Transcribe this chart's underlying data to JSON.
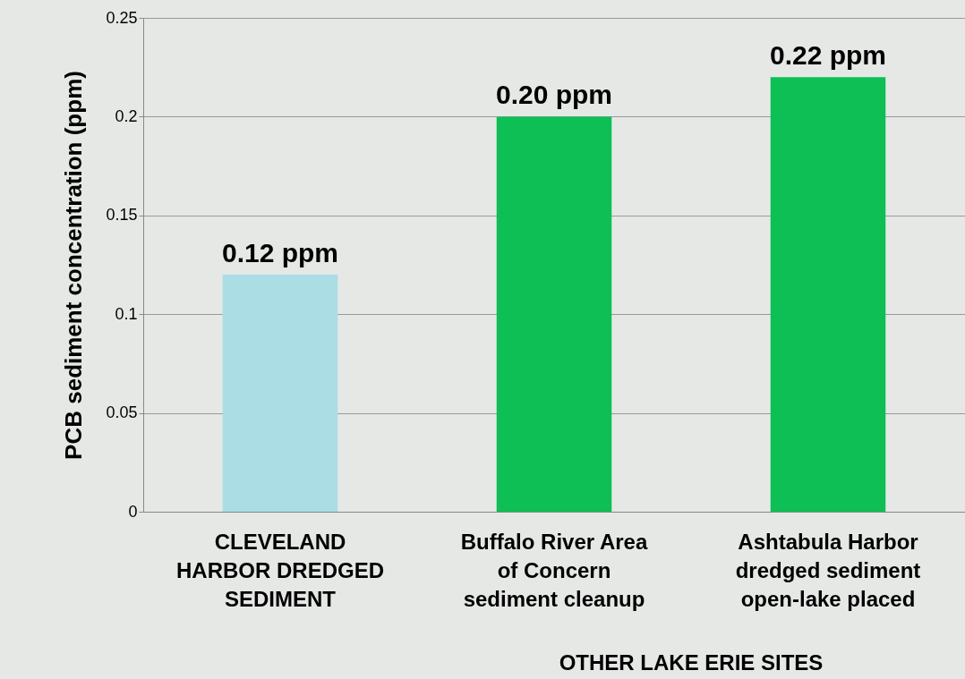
{
  "chart_data": {
    "type": "bar",
    "ylabel": "PCB sediment concentration (ppm)",
    "categories": [
      "CLEVELAND\nHARBOR DREDGED\nSEDIMENT",
      "Buffalo River Area\nof Concern\nsediment cleanup",
      "Ashtabula Harbor\ndredged sediment\nopen-lake placed"
    ],
    "values": [
      0.12,
      0.2,
      0.22
    ],
    "colors": [
      "#aadde4",
      "#0dbf55",
      "#0dbf55"
    ],
    "value_labels": [
      "0.12 ppm",
      "0.20 ppm",
      "0.22 ppm"
    ],
    "ylim": [
      0,
      0.25
    ],
    "yticks": [
      0,
      0.05,
      0.1,
      0.15,
      0.2,
      0.25
    ],
    "grid": "y",
    "annotations": [
      "OTHER LAKE ERIE SITES"
    ]
  }
}
